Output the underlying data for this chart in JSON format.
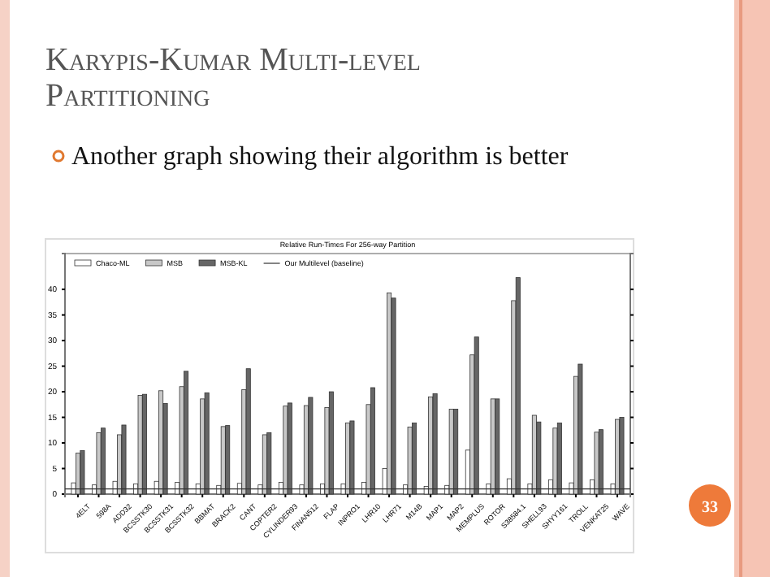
{
  "chart_data": {
    "type": "bar",
    "title": "Karypis-Kumar Multi-level Partitioning",
    "subtitle": "Another graph showing their algorithm is better",
    "annotations": [
      "Relative Run-Times For 256-way Partition",
      "33"
    ],
    "categories": [
      "4ELT",
      "598A",
      "ADD32",
      "BCSSTK30",
      "BCSSTK31",
      "BCSSTK32",
      "BBMAT",
      "BRACK2",
      "CANT",
      "COPTER2",
      "CYLINDER93",
      "FINAN512",
      "FLAP",
      "INPRO1",
      "LHR10",
      "LHR71",
      "M14B",
      "MAP1",
      "MAP2",
      "MEMPLUS",
      "ROTOR",
      "S38584.1",
      "SHELL93",
      "SHYY161",
      "TROLL",
      "VENKAT25",
      "WAVE"
    ],
    "series": [
      {
        "name": "Chaco-ML",
        "color": "#ffffff",
        "values": [
          2.2,
          1.8,
          2.5,
          2.0,
          2.5,
          2.3,
          2.0,
          1.7,
          2.1,
          1.8,
          2.3,
          1.8,
          2.0,
          2.0,
          2.3,
          5.0,
          1.8,
          1.5,
          1.7,
          8.6,
          2.0,
          3.0,
          2.0,
          2.8,
          2.2,
          2.8,
          2.0
        ]
      },
      {
        "name": "MSB",
        "color": "#c8c8c8",
        "values": [
          8.0,
          12.0,
          11.6,
          19.3,
          20.2,
          21.0,
          18.6,
          13.2,
          20.4,
          11.6,
          17.2,
          17.3,
          16.9,
          13.9,
          17.5,
          39.3,
          13.1,
          19.0,
          16.6,
          27.2,
          18.6,
          37.8,
          15.4,
          12.9,
          23.0,
          12.1,
          14.6
        ]
      },
      {
        "name": "MSB-KL",
        "color": "#666666",
        "values": [
          8.5,
          12.9,
          13.5,
          19.5,
          17.7,
          24.0,
          19.8,
          13.4,
          24.5,
          12.0,
          17.8,
          18.9,
          20.0,
          14.3,
          20.8,
          38.3,
          13.9,
          19.6,
          16.6,
          30.7,
          18.6,
          42.3,
          14.1,
          13.9,
          25.4,
          12.6,
          15.0
        ]
      }
    ],
    "ref_lines": [
      {
        "axis": "y",
        "value": 1,
        "label": "Our Multilevel (baseline)",
        "color": "#333333"
      }
    ],
    "ylim": [
      0,
      47
    ],
    "yticks": [
      0,
      5,
      10,
      15,
      20,
      25,
      30,
      35,
      40
    ],
    "legend": "top left",
    "grid": false
  }
}
